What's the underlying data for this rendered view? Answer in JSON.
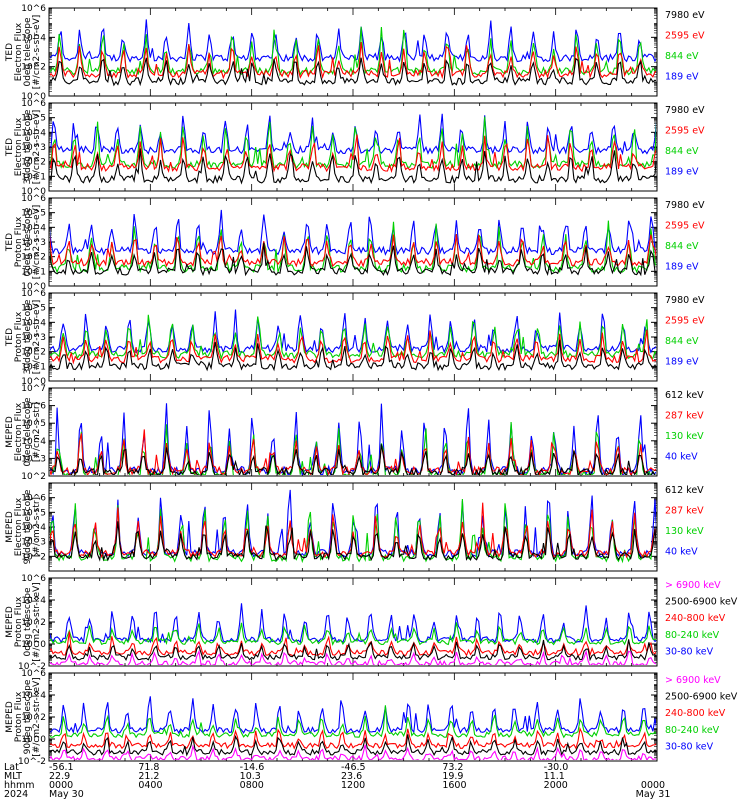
{
  "chart_data": [
    {
      "type": "line",
      "ylabel": [
        "TED",
        "Electron Flux",
        "0deg telescope",
        "[#/cm2-s-str-eV]"
      ],
      "ylim_exp": [
        0,
        6
      ],
      "yticks": [
        {
          "exp": 0,
          "label": "10^0"
        },
        {
          "exp": 2,
          "label": "10^2"
        },
        {
          "exp": 4,
          "label": "10^4"
        },
        {
          "exp": 6,
          "label": "10^6"
        }
      ],
      "series": [
        {
          "name": "7980 eV",
          "color": "#000000",
          "floor": 1.0,
          "peak": 2.8
        },
        {
          "name": "2595 eV",
          "color": "#ff0000",
          "floor": 1.5,
          "peak": 3.5
        },
        {
          "name": "844 eV",
          "color": "#00d000",
          "floor": 1.7,
          "peak": 4.5
        },
        {
          "name": "189 eV",
          "color": "#0000ff",
          "floor": 2.6,
          "peak": 5.0
        }
      ]
    },
    {
      "type": "line",
      "ylabel": [
        "TED",
        "Electron Flux",
        "30deg telescope",
        "[#/cm2-s-str-eV]"
      ],
      "ylim_exp": [
        0,
        6
      ],
      "yticks": [
        {
          "exp": 0,
          "label": "10^0"
        },
        {
          "exp": 1,
          "label": "10^1"
        },
        {
          "exp": 2,
          "label": "10^2"
        },
        {
          "exp": 3,
          "label": "10^3"
        },
        {
          "exp": 4,
          "label": "10^4"
        },
        {
          "exp": 5,
          "label": "10^5"
        },
        {
          "exp": 6,
          "label": "10^6"
        }
      ],
      "series": [
        {
          "name": "7980 eV",
          "color": "#000000",
          "floor": 0.8,
          "peak": 2.8
        },
        {
          "name": "2595 eV",
          "color": "#ff0000",
          "floor": 1.6,
          "peak": 3.6
        },
        {
          "name": "844 eV",
          "color": "#00d000",
          "floor": 1.8,
          "peak": 4.6
        },
        {
          "name": "189 eV",
          "color": "#0000ff",
          "floor": 2.8,
          "peak": 5.0
        }
      ]
    },
    {
      "type": "line",
      "ylabel": [
        "TED",
        "Proton Flux",
        "0deg telescope",
        "[#/cm2-s-str-eV]"
      ],
      "ylim_exp": [
        0,
        6
      ],
      "yticks": [
        {
          "exp": 0,
          "label": "10^0"
        },
        {
          "exp": 1,
          "label": "10^1"
        },
        {
          "exp": 2,
          "label": "10^2"
        },
        {
          "exp": 3,
          "label": "10^3"
        },
        {
          "exp": 4,
          "label": "10^4"
        },
        {
          "exp": 5,
          "label": "10^5"
        },
        {
          "exp": 6,
          "label": "10^6"
        }
      ],
      "series": [
        {
          "name": "7980 eV",
          "color": "#000000",
          "floor": 1.0,
          "peak": 2.8
        },
        {
          "name": "2595 eV",
          "color": "#ff0000",
          "floor": 1.6,
          "peak": 3.6
        },
        {
          "name": "844 eV",
          "color": "#00d000",
          "floor": 1.2,
          "peak": 4.2
        },
        {
          "name": "189 eV",
          "color": "#0000ff",
          "floor": 2.4,
          "peak": 5.0
        }
      ]
    },
    {
      "type": "line",
      "ylabel": [
        "TED",
        "Proton Flux",
        "30deg telescope",
        "[#/cm2-s-str-eV]"
      ],
      "ylim_exp": [
        0,
        6
      ],
      "yticks": [
        {
          "exp": 0,
          "label": "10^0"
        },
        {
          "exp": 1,
          "label": "10^1"
        },
        {
          "exp": 2,
          "label": "10^2"
        },
        {
          "exp": 3,
          "label": "10^3"
        },
        {
          "exp": 4,
          "label": "10^4"
        },
        {
          "exp": 5,
          "label": "10^5"
        },
        {
          "exp": 6,
          "label": "10^6"
        }
      ],
      "series": [
        {
          "name": "7980 eV",
          "color": "#000000",
          "floor": 1.0,
          "peak": 2.6
        },
        {
          "name": "2595 eV",
          "color": "#ff0000",
          "floor": 1.5,
          "peak": 3.4
        },
        {
          "name": "844 eV",
          "color": "#00d000",
          "floor": 1.8,
          "peak": 4.4
        },
        {
          "name": "189 eV",
          "color": "#0000ff",
          "floor": 2.2,
          "peak": 4.8
        }
      ]
    },
    {
      "type": "line",
      "ylabel": [
        "MEPED",
        "Electron Flux",
        "0deg telescope",
        "[#/cm2-s-str]"
      ],
      "ylim_exp": [
        2,
        7
      ],
      "yticks": [
        {
          "exp": 2,
          "label": "10^2"
        },
        {
          "exp": 3,
          "label": "10^3"
        },
        {
          "exp": 4,
          "label": "10^4"
        },
        {
          "exp": 5,
          "label": "10^5"
        },
        {
          "exp": 6,
          "label": "10^6"
        },
        {
          "exp": 7,
          "label": "10^7"
        }
      ],
      "series": [
        {
          "name": "612 keV",
          "color": "#000000",
          "floor": 2.2,
          "peak": 3.6
        },
        {
          "name": "287 keV",
          "color": "#ff0000",
          "floor": 2.3,
          "peak": 4.2
        },
        {
          "name": "130 keV",
          "color": "#00d000",
          "floor": 2.05,
          "peak": 4.8
        },
        {
          "name": "40 keV",
          "color": "#0000ff",
          "floor": 2.3,
          "peak": 5.8
        }
      ]
    },
    {
      "type": "line",
      "ylabel": [
        "MEPED",
        "Electron Flux",
        "90deg telescope",
        "[#/cm2-s-str]"
      ],
      "ylim_exp": [
        1,
        7
      ],
      "yticks": [
        {
          "exp": 2,
          "label": "10^2"
        },
        {
          "exp": 3,
          "label": "10^3"
        },
        {
          "exp": 4,
          "label": "10^4"
        },
        {
          "exp": 5,
          "label": "10^5"
        },
        {
          "exp": 6,
          "label": "10^6"
        }
      ],
      "series": [
        {
          "name": "612 keV",
          "color": "#000000",
          "floor": 2.0,
          "peak": 4.2
        },
        {
          "name": "287 keV",
          "color": "#ff0000",
          "floor": 2.2,
          "peak": 5.0
        },
        {
          "name": "130 keV",
          "color": "#00d000",
          "floor": 1.9,
          "peak": 5.6
        },
        {
          "name": "40 keV",
          "color": "#0000ff",
          "floor": 2.2,
          "peak": 6.2
        }
      ]
    },
    {
      "type": "line",
      "ylabel": [
        "MEPED",
        "Proton Flux",
        "0deg telescope",
        "[#/cm2-s-str-keV]"
      ],
      "ylim_exp": [
        -2,
        6
      ],
      "yticks": [
        {
          "exp": -2,
          "label": "10^-2"
        },
        {
          "exp": 0,
          "label": "10^0"
        },
        {
          "exp": 2,
          "label": "10^2"
        },
        {
          "exp": 4,
          "label": "10^4"
        },
        {
          "exp": 6,
          "label": "10^6"
        }
      ],
      "series": [
        {
          "name": "> 6900 keV",
          "color": "#ff00ff",
          "floor": -1.8,
          "peak": -0.8
        },
        {
          "name": "2500-6900 keV",
          "color": "#000000",
          "floor": -1.2,
          "peak": 0.2
        },
        {
          "name": "240-800 keV",
          "color": "#ff0000",
          "floor": -0.8,
          "peak": 0.6
        },
        {
          "name": "80-240 keV",
          "color": "#00d000",
          "floor": 0.2,
          "peak": 1.8
        },
        {
          "name": "30-80 keV",
          "color": "#0000ff",
          "floor": 0.4,
          "peak": 3.6
        }
      ]
    },
    {
      "type": "line",
      "ylabel": [
        "MEPED",
        "Proton Flux",
        "90deg telescope",
        "[#/cm2-s-str-keV]"
      ],
      "ylim_exp": [
        -2,
        6
      ],
      "yticks": [
        {
          "exp": -2,
          "label": "10^-2"
        },
        {
          "exp": 0,
          "label": "10^0"
        },
        {
          "exp": 2,
          "label": "10^2"
        },
        {
          "exp": 4,
          "label": "10^4"
        },
        {
          "exp": 6,
          "label": "10^6"
        }
      ],
      "series": [
        {
          "name": "> 6900 keV",
          "color": "#ff00ff",
          "floor": -1.8,
          "peak": -0.8
        },
        {
          "name": "2500-6900 keV",
          "color": "#000000",
          "floor": -1.2,
          "peak": 0.2
        },
        {
          "name": "240-800 keV",
          "color": "#ff0000",
          "floor": -0.6,
          "peak": 0.8
        },
        {
          "name": "80-240 keV",
          "color": "#00d000",
          "floor": 0.4,
          "peak": 2.2
        },
        {
          "name": "30-80 keV",
          "color": "#0000ff",
          "floor": 0.8,
          "peak": 4.0
        }
      ]
    }
  ],
  "x_axis": {
    "range_hours": [
      0,
      24
    ],
    "row_labels": [
      "Lat",
      "MLT",
      "hhmm",
      "2024"
    ],
    "ticks": [
      {
        "hour": 0,
        "lat": "-56.1",
        "mlt": "22.9",
        "hhmm": "0000",
        "date": "May 30"
      },
      {
        "hour": 4,
        "lat": "71.8",
        "mlt": "21.2",
        "hhmm": "0400",
        "date": ""
      },
      {
        "hour": 8,
        "lat": "-14.6",
        "mlt": "10.3",
        "hhmm": "0800",
        "date": ""
      },
      {
        "hour": 12,
        "lat": "-46.5",
        "mlt": "23.6",
        "hhmm": "1200",
        "date": ""
      },
      {
        "hour": 16,
        "lat": "73.2",
        "mlt": "19.9",
        "hhmm": "1600",
        "date": ""
      },
      {
        "hour": 20,
        "lat": "-30.0",
        "mlt": "11.1",
        "hhmm": "2000",
        "date": ""
      },
      {
        "hour": 24,
        "lat": "",
        "mlt": "",
        "hhmm": "0000",
        "date": "May 31"
      }
    ]
  }
}
